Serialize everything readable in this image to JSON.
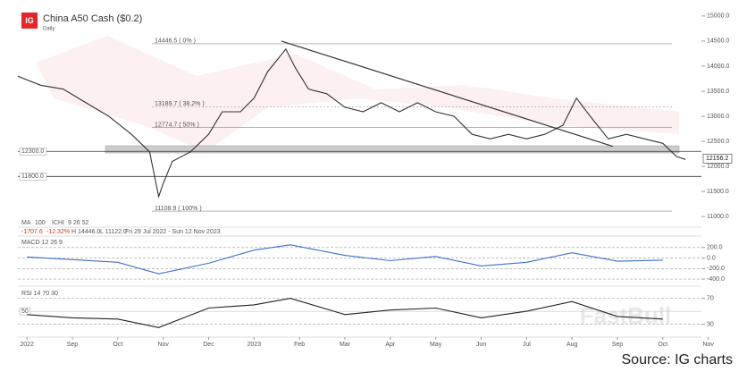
{
  "header": {
    "logo": "IG",
    "title": "China A50 Cash ($0.2)",
    "subtitle": "Daily"
  },
  "source": "Source: IG charts",
  "watermark": "FastBull",
  "chart_data": [
    {
      "type": "line",
      "color": "#333333",
      "indicators": [
        "MA",
        "100",
        "ICHI",
        "9 26 52"
      ],
      "stats": [
        "-1707.6",
        "-12.32%",
        "H 14446.0",
        "L 11122.0",
        "Fri 29 Jul 2022 - Sun 12 Nov 2023"
      ],
      "x": [
        -0.2,
        0.3,
        0.8,
        1.3,
        1.8,
        2.3,
        2.7,
        2.9,
        3.0,
        3.2,
        3.6,
        4.0,
        4.3,
        4.7,
        5.0,
        5.3,
        5.7,
        5.9,
        6.2,
        6.6,
        7.0,
        7.4,
        7.8,
        8.2,
        8.6,
        9.0,
        9.4,
        9.8,
        10.2,
        10.6,
        11.0,
        11.4,
        11.8,
        12.1,
        12.4,
        12.8,
        13.2,
        13.6,
        14.0,
        14.3,
        14.5
      ],
      "values": [
        13800,
        13620,
        13540,
        13270,
        13000,
        12640,
        12290,
        11400,
        11660,
        12100,
        12290,
        12640,
        13090,
        13090,
        13360,
        13890,
        14340,
        13980,
        13540,
        13450,
        13180,
        13090,
        13270,
        13090,
        13270,
        13090,
        13000,
        12640,
        12550,
        12640,
        12550,
        12640,
        12820,
        13360,
        13000,
        12550,
        12640,
        12550,
        12460,
        12200,
        12140
      ],
      "last_price": 12156.2,
      "xlim": [
        -0.2,
        14.85
      ],
      "xticks": [
        {
          "value": 0,
          "label": "2022"
        },
        {
          "value": 1,
          "label": "Sep"
        },
        {
          "value": 2,
          "label": "Oct"
        },
        {
          "value": 3,
          "label": "Nov"
        },
        {
          "value": 4,
          "label": "Dec"
        },
        {
          "value": 5,
          "label": "2023"
        },
        {
          "value": 6,
          "label": "Feb"
        },
        {
          "value": 7,
          "label": "Mar"
        },
        {
          "value": 8,
          "label": "Apr"
        },
        {
          "value": 9,
          "label": "May"
        },
        {
          "value": 10,
          "label": "Jun"
        },
        {
          "value": 11,
          "label": "Jul"
        },
        {
          "value": 12,
          "label": "Aug"
        },
        {
          "value": 13,
          "label": "Sep"
        },
        {
          "value": 14,
          "label": "Oct"
        },
        {
          "value": 15,
          "label": "Nov"
        }
      ],
      "ylim": [
        10950,
        15140
      ],
      "yticks": [
        {
          "value": 11000,
          "label": "11000.0"
        },
        {
          "value": 11500,
          "label": "11500.0"
        },
        {
          "value": 12000,
          "label": "12000.0"
        },
        {
          "value": 12500,
          "label": "12500.0"
        },
        {
          "value": 13000,
          "label": "13000.0"
        },
        {
          "value": 13500,
          "label": "13500.0"
        },
        {
          "value": 14000,
          "label": "14000.0"
        },
        {
          "value": 14500,
          "label": "14500.0"
        },
        {
          "value": 15000,
          "label": "15000.0"
        }
      ],
      "levels": [
        {
          "value": 14446.5,
          "label": "14446.5 ( 0% )"
        },
        {
          "value": 13189.7,
          "label": "13189.7 ( 38.2% )"
        },
        {
          "value": 12774.7,
          "label": "12774.7 ( 50% )"
        },
        {
          "value": 11108.9,
          "label": "11108.9 ( 100% )"
        }
      ],
      "support": [
        {
          "value": 12300,
          "label": "12300.0"
        },
        {
          "value": 11800,
          "label": "11800.0"
        }
      ],
      "trendline": {
        "x": [
          5.6,
          12.9
        ],
        "values": [
          14500,
          12400
        ]
      }
    },
    {
      "type": "line",
      "title": "MACD 12 26 9",
      "color": "#3b6fd1",
      "x": [
        0,
        1,
        2,
        2.9,
        4,
        5,
        5.8,
        7,
        8,
        9,
        10,
        11,
        12,
        13,
        14
      ],
      "values": [
        20,
        -30,
        -80,
        -300,
        -100,
        150,
        250,
        50,
        -50,
        30,
        -150,
        -80,
        100,
        -60,
        -40
      ],
      "ylim": [
        -500,
        400
      ],
      "yticks": [
        {
          "value": 200,
          "label": "200.0"
        },
        {
          "value": 0,
          "label": "0.0"
        },
        {
          "value": -200,
          "label": "-200.0"
        },
        {
          "value": -400,
          "label": "-400.0"
        }
      ]
    },
    {
      "type": "line",
      "title": "RSI 14 70 30",
      "color": "#222222",
      "x": [
        0,
        1,
        2,
        2.9,
        4,
        5,
        5.8,
        7,
        8,
        9,
        10,
        11,
        12,
        13,
        14
      ],
      "values": [
        45,
        40,
        38,
        25,
        55,
        60,
        70,
        45,
        52,
        55,
        40,
        50,
        65,
        42,
        38
      ],
      "midline": 50,
      "ylim": [
        13,
        86
      ],
      "yticks": [
        70,
        30
      ]
    }
  ]
}
